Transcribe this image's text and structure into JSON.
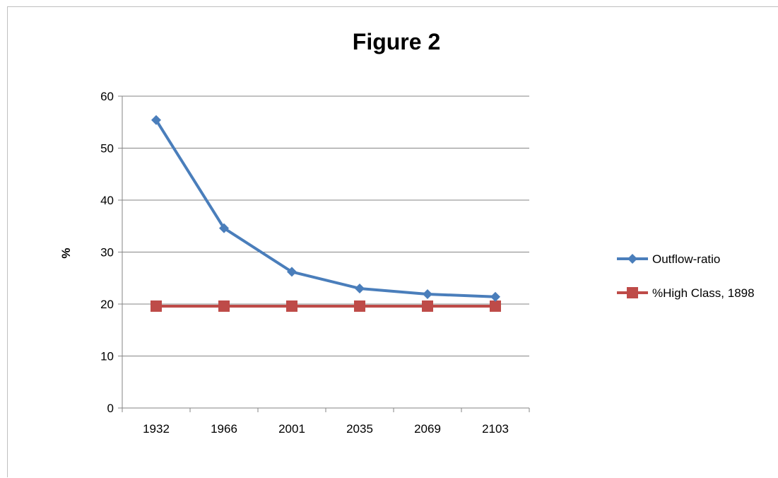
{
  "chart_data": {
    "type": "line",
    "title": "Figure 2",
    "xlabel": "",
    "ylabel": "%",
    "categories": [
      "1932",
      "1966",
      "2001",
      "2035",
      "2069",
      "2103"
    ],
    "ylim": [
      0,
      60
    ],
    "yticks": [
      0,
      10,
      20,
      30,
      40,
      50,
      60
    ],
    "grid": true,
    "legend_position": "right",
    "series": [
      {
        "name": "Outflow-ratio",
        "values": [
          55.4,
          34.6,
          26.2,
          23.0,
          21.9,
          21.4
        ],
        "color": "#4a7ebb",
        "marker": "diamond"
      },
      {
        "name": "%High Class, 1898",
        "values": [
          19.6,
          19.6,
          19.6,
          19.6,
          19.6,
          19.6
        ],
        "color": "#be4b48",
        "marker": "square"
      }
    ]
  }
}
